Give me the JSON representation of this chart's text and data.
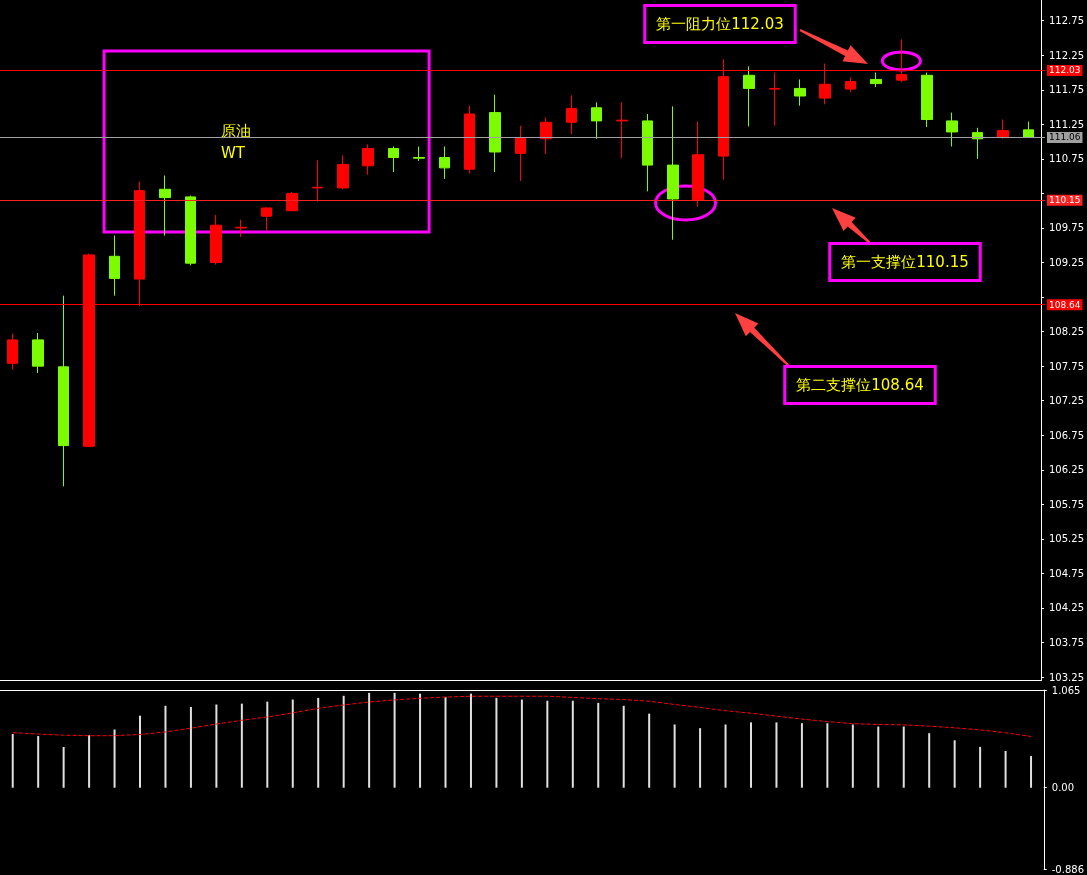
{
  "chart_data": [
    {
      "type": "candlestick",
      "categories": [
        null,
        null,
        null,
        null,
        null,
        null,
        null,
        null,
        null,
        null,
        null,
        null,
        null,
        null,
        null,
        null,
        null,
        null,
        null,
        null,
        null,
        null,
        null,
        null,
        null,
        null,
        null,
        null,
        null,
        null,
        null,
        null,
        null,
        null,
        null,
        null,
        null,
        null,
        null,
        null,
        null
      ],
      "ohlc": [
        [
          107.79,
          108.22,
          107.7,
          108.13
        ],
        [
          108.13,
          108.23,
          107.65,
          107.75
        ],
        [
          107.74,
          108.77,
          106.01,
          106.6
        ],
        [
          106.59,
          109.38,
          106.58,
          109.36
        ],
        [
          109.34,
          109.64,
          108.77,
          109.02
        ],
        [
          109.01,
          110.42,
          108.62,
          110.29
        ],
        [
          110.31,
          110.51,
          109.64,
          110.19
        ],
        [
          110.2,
          110.22,
          109.21,
          109.24
        ],
        [
          109.25,
          109.94,
          109.22,
          109.79
        ],
        [
          109.75,
          109.87,
          109.62,
          109.76
        ],
        [
          109.92,
          110.05,
          109.71,
          110.04
        ],
        [
          110.0,
          110.27,
          110.0,
          110.25
        ],
        [
          110.33,
          110.73,
          110.13,
          110.34
        ],
        [
          110.33,
          110.8,
          110.31,
          110.67
        ],
        [
          110.65,
          110.96,
          110.52,
          110.9
        ],
        [
          110.9,
          110.93,
          110.56,
          110.77
        ],
        [
          110.77,
          110.93,
          110.72,
          110.76
        ],
        [
          110.77,
          110.93,
          110.46,
          110.62
        ],
        [
          110.6,
          111.52,
          110.54,
          111.4
        ],
        [
          111.42,
          111.68,
          110.56,
          110.85
        ],
        [
          110.83,
          111.23,
          110.43,
          111.06
        ],
        [
          111.04,
          111.35,
          110.82,
          111.28
        ],
        [
          111.28,
          111.67,
          111.11,
          111.48
        ],
        [
          111.49,
          111.57,
          111.04,
          111.3
        ],
        [
          111.3,
          111.57,
          110.76,
          111.31
        ],
        [
          111.3,
          111.4,
          110.28,
          110.66
        ],
        [
          110.66,
          111.51,
          109.58,
          110.17
        ],
        [
          110.16,
          111.29,
          110.06,
          110.81
        ],
        [
          110.79,
          112.19,
          110.45,
          111.94
        ],
        [
          111.96,
          112.09,
          111.22,
          111.77
        ],
        [
          111.76,
          112.0,
          111.23,
          111.77
        ],
        [
          111.77,
          111.9,
          111.52,
          111.66
        ],
        [
          111.63,
          112.13,
          111.54,
          111.83
        ],
        [
          111.76,
          111.93,
          111.72,
          111.87
        ],
        [
          111.9,
          112.0,
          111.79,
          111.84
        ],
        [
          111.89,
          112.48,
          111.86,
          111.97
        ],
        [
          111.96,
          112.0,
          111.21,
          111.32
        ],
        [
          111.3,
          111.42,
          110.93,
          111.14
        ],
        [
          111.13,
          111.2,
          110.75,
          111.04
        ],
        [
          111.06,
          111.32,
          111.04,
          111.16
        ],
        [
          111.17,
          111.29,
          111.06,
          111.06
        ]
      ],
      "colors": [
        "#ff0000",
        "#7cfc00",
        "#7cfc00",
        "#ff0000",
        "#7cfc00",
        "#ff0000",
        "#7cfc00",
        "#7cfc00",
        "#ff0000",
        "#ff0000",
        "#ff0000",
        "#ff0000",
        "#ff0000",
        "#ff0000",
        "#ff0000",
        "#7cfc00",
        "#7cfc00",
        "#7cfc00",
        "#ff0000",
        "#7cfc00",
        "#ff0000",
        "#ff0000",
        "#ff0000",
        "#7cfc00",
        "#ff0000",
        "#7cfc00",
        "#7cfc00",
        "#ff0000",
        "#ff0000",
        "#7cfc00",
        "#ff0000",
        "#7cfc00",
        "#ff0000",
        "#ff0000",
        "#7cfc00",
        "#ff0000",
        "#7cfc00",
        "#7cfc00",
        "#7cfc00",
        "#ff0000",
        "#7cfc00"
      ],
      "ylim": [
        103.2,
        113.05
      ],
      "yticks": [
        103.25,
        103.75,
        104.25,
        104.75,
        105.25,
        105.75,
        106.25,
        106.75,
        107.25,
        107.75,
        108.25,
        {
          "value": 108.75,
          "label": null
        },
        109.25,
        109.75,
        {
          "value": 110.25,
          "label": null
        },
        110.75,
        111.25,
        111.75,
        112.25,
        112.75
      ],
      "tick_labels": "y",
      "ref_lines": [
        {
          "axis": "y",
          "value": 112.03,
          "label": "112.03",
          "color": "#ff0000"
        },
        {
          "axis": "y",
          "value": 111.06,
          "label": "111.06",
          "color": "#a0a0a0"
        },
        {
          "axis": "y",
          "value": 110.15,
          "label": "110.15",
          "color": "#ff2020"
        },
        {
          "axis": "y",
          "value": 108.64,
          "label": "108.64",
          "color": "#ff0000"
        }
      ],
      "annotations": [
        "第一阻力位112.03",
        "第一支撑位110.15",
        "第二支撑位108.64",
        "原油\nWT"
      ]
    },
    {
      "type": "bar",
      "categories": [
        null,
        null,
        null,
        null,
        null,
        null,
        null,
        null,
        null,
        null,
        null,
        null,
        null,
        null,
        null,
        null,
        null,
        null,
        null,
        null,
        null,
        null,
        null,
        null,
        null,
        null,
        null,
        null,
        null,
        null,
        null,
        null,
        null,
        null,
        null,
        null,
        null,
        null,
        null,
        null,
        null
      ],
      "series": [
        {
          "type": "bar",
          "color": "#e0e0e0",
          "values": [
            0.585,
            0.563,
            0.445,
            0.572,
            0.635,
            0.785,
            0.893,
            0.88,
            0.907,
            0.916,
            0.938,
            0.961,
            0.979,
            1.002,
            1.034,
            1.034,
            1.025,
            0.988,
            1.025,
            0.979,
            0.961,
            0.948,
            0.948,
            0.925,
            0.893,
            0.807,
            0.689,
            0.649,
            0.689,
            0.712,
            0.712,
            0.703,
            0.703,
            0.689,
            0.667,
            0.667,
            0.594,
            0.517,
            0.445,
            0.4,
            0.345
          ]
        },
        {
          "type": "line",
          "color": "#ff0000",
          "line_style": "dashed",
          "marker": "none",
          "values": [
            0.599,
            0.585,
            0.572,
            0.567,
            0.567,
            0.58,
            0.608,
            0.649,
            0.694,
            0.735,
            0.771,
            0.816,
            0.866,
            0.902,
            0.934,
            0.957,
            0.975,
            0.988,
            0.997,
            0.997,
            0.997,
            0.997,
            0.984,
            0.97,
            0.961,
            0.943,
            0.907,
            0.875,
            0.839,
            0.812,
            0.78,
            0.748,
            0.721,
            0.698,
            0.689,
            0.685,
            0.671,
            0.653,
            0.63,
            0.599,
            0.558
          ]
        }
      ],
      "ylim": [
        -0.886,
        1.065
      ],
      "yticks": [
        1.065,
        {
          "value": 0,
          "label": "0.00"
        },
        -0.886
      ],
      "tick_labels": "y"
    }
  ]
}
